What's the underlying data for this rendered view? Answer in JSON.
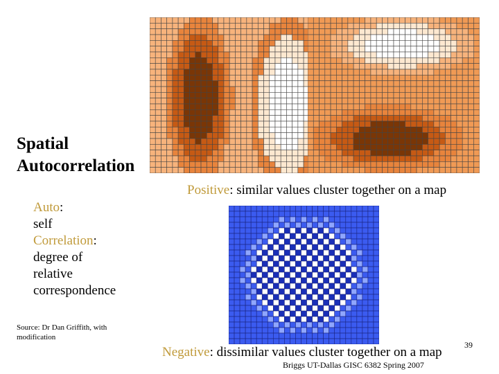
{
  "slide": {
    "title_line1": "Spatial",
    "title_line2": "Autocorrelation",
    "positive": {
      "term": "Positive",
      "rest": ": similar values cluster together on a map"
    },
    "negative": {
      "term": "Negative",
      "rest": ": dissimilar values cluster together on a map"
    },
    "definitions": {
      "auto_term": "Auto",
      "auto_rest": ":",
      "auto_meaning": "self",
      "corr_term": "Correlation",
      "corr_rest": ":",
      "corr_meaning_1": "degree of",
      "corr_meaning_2": "relative",
      "corr_meaning_3": "correspondence"
    },
    "source_line1": "Source: Dr Dan Griffith, with",
    "source_line2": "modification",
    "slide_number": "39",
    "footer": "Briggs UT-Dallas GISC 6382 Spring 2007"
  },
  "colors": {
    "orange_dark": "#7a3606",
    "orange_mid": "#c65a14",
    "orange": "#e8843c",
    "orange_light": "#f7b37c",
    "cream": "#fde8d0",
    "white": "#ffffff",
    "blue_dark": "#1a2fb8",
    "blue": "#3b5bf0",
    "blue_light": "#8fa6ff"
  }
}
